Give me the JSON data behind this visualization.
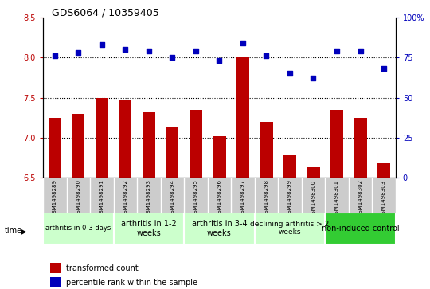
{
  "title": "GDS6064 / 10359405",
  "samples": [
    "GSM1498289",
    "GSM1498290",
    "GSM1498291",
    "GSM1498292",
    "GSM1498293",
    "GSM1498294",
    "GSM1498295",
    "GSM1498296",
    "GSM1498297",
    "GSM1498298",
    "GSM1498299",
    "GSM1498300",
    "GSM1498301",
    "GSM1498302",
    "GSM1498303"
  ],
  "bar_values": [
    7.25,
    7.3,
    7.5,
    7.47,
    7.32,
    7.13,
    7.35,
    7.02,
    8.01,
    7.2,
    6.78,
    6.63,
    7.35,
    7.25,
    6.68
  ],
  "dot_values": [
    76,
    78,
    83,
    80,
    79,
    75,
    79,
    73,
    84,
    76,
    65,
    62,
    79,
    79,
    68
  ],
  "bar_color": "#bb0000",
  "dot_color": "#0000bb",
  "ylim_left": [
    6.5,
    8.5
  ],
  "ylim_right": [
    0,
    100
  ],
  "yticks_left": [
    6.5,
    7.0,
    7.5,
    8.0,
    8.5
  ],
  "yticks_right": [
    0,
    25,
    50,
    75,
    100
  ],
  "gridlines": [
    7.0,
    7.5,
    8.0
  ],
  "groups": [
    {
      "label": "arthritis in 0-3 days",
      "start": 0,
      "end": 3,
      "color": "#ccffcc",
      "fontsize": 6.0
    },
    {
      "label": "arthritis in 1-2\nweeks",
      "start": 3,
      "end": 6,
      "color": "#ccffcc",
      "fontsize": 7.0
    },
    {
      "label": "arthritis in 3-4\nweeks",
      "start": 6,
      "end": 9,
      "color": "#ccffcc",
      "fontsize": 7.0
    },
    {
      "label": "declining arthritis > 2\nweeks",
      "start": 9,
      "end": 12,
      "color": "#ccffcc",
      "fontsize": 6.5
    },
    {
      "label": "non-induced control",
      "start": 12,
      "end": 15,
      "color": "#33cc33",
      "fontsize": 7.0
    }
  ],
  "legend_items": [
    {
      "label": "transformed count",
      "color": "#bb0000"
    },
    {
      "label": "percentile rank within the sample",
      "color": "#0000bb"
    }
  ],
  "tick_bg_color": "#cccccc",
  "bar_bottom": 6.5
}
